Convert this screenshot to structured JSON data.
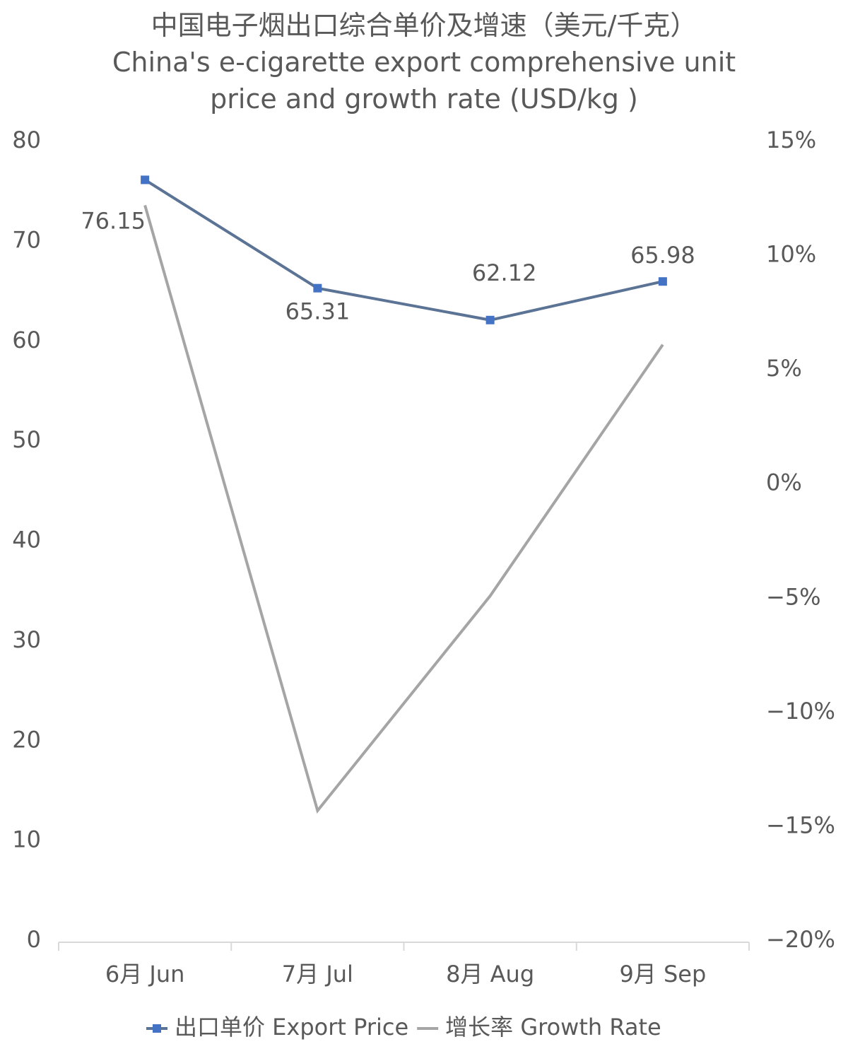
{
  "chart_data": {
    "type": "line",
    "title": "中国电子烟出口综合单价及增速（美元/千克）",
    "subtitle": "China's e-cigarette export comprehensive unit price and growth rate (USD/kg )",
    "categories": [
      "6月 Jun",
      "7月 Jul",
      "8月 Aug",
      "9月 Sep"
    ],
    "series": [
      {
        "name": "出口单价 Export Price",
        "color": "#4472c4",
        "line_color": "#5b7394",
        "values": [
          76.15,
          65.31,
          62.12,
          65.98
        ]
      },
      {
        "name": "增长率 Growth Rate",
        "color": "#a5a5a5",
        "axis": "y2",
        "values": [
          12.2,
          -14.3,
          -4.9,
          6.1
        ]
      }
    ],
    "ylim": [
      0,
      80
    ],
    "yticks": [
      0,
      10,
      20,
      30,
      40,
      50,
      60,
      70,
      80
    ],
    "y2lim": [
      -20,
      15
    ],
    "y2ticks": [
      {
        "value": -20,
        "label": "−20%"
      },
      {
        "value": -15,
        "label": "−15%"
      },
      {
        "value": -10,
        "label": "−10%"
      },
      {
        "value": -5,
        "label": "−5%"
      },
      {
        "value": 0,
        "label": "0%"
      },
      {
        "value": 5,
        "label": "5%"
      },
      {
        "value": 10,
        "label": "10%"
      },
      {
        "value": 15,
        "label": "15%"
      }
    ],
    "grid": false,
    "legend": "bottom"
  }
}
